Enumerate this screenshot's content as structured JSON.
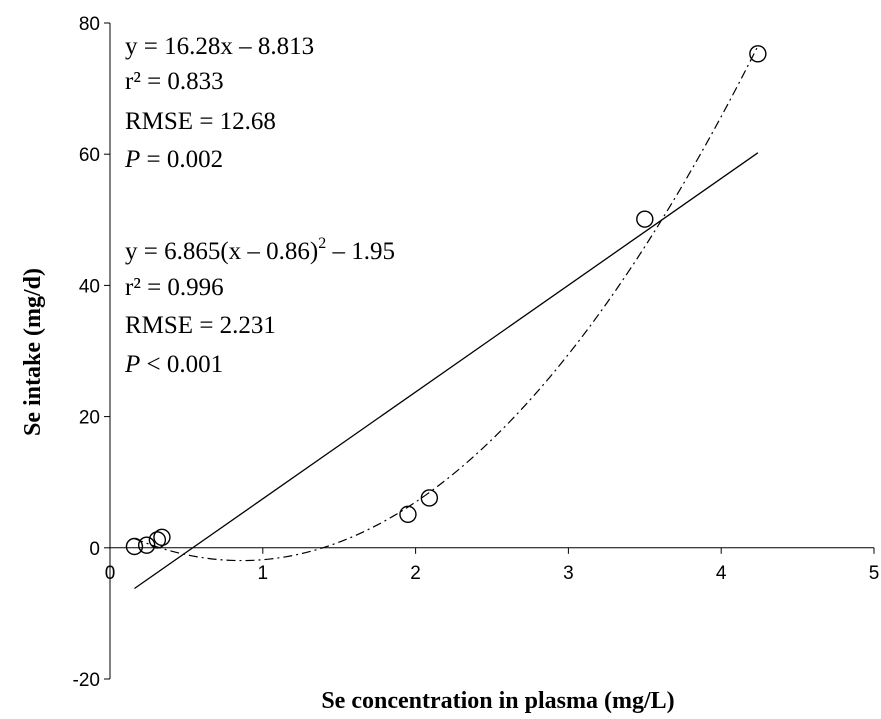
{
  "chart_data": {
    "type": "scatter",
    "title": "",
    "xlabel": "Se concentration in plasma (mg/L)",
    "ylabel": "Se intake (mg/d)",
    "xlim": [
      0,
      5
    ],
    "ylim": [
      -20,
      80
    ],
    "x_ticks": [
      "0",
      "1",
      "2",
      "3",
      "4",
      "5"
    ],
    "y_ticks": [
      "-20",
      "0",
      "20",
      "40",
      "60",
      "80"
    ],
    "x_tick_values": [
      0,
      1,
      2,
      3,
      4,
      5
    ],
    "y_tick_values": [
      -20,
      0,
      20,
      40,
      60,
      80
    ],
    "grid": false,
    "legend": "none",
    "series": [
      {
        "kind": "points",
        "marker": "open-circle",
        "x": [
          0.16,
          0.24,
          0.31,
          0.34,
          1.95,
          2.09,
          3.5,
          4.24
        ],
        "y": [
          0.2,
          0.4,
          1.2,
          1.6,
          5.1,
          7.6,
          50.1,
          75.3
        ]
      },
      {
        "kind": "linear-fit",
        "style": "solid",
        "slope": 16.28,
        "intercept": -8.813,
        "x_range": [
          0.16,
          4.24
        ]
      },
      {
        "kind": "quadratic-fit",
        "style": "dash-dot",
        "a": 6.865,
        "h": 0.86,
        "k": -1.95,
        "x_range": [
          0.16,
          4.24
        ]
      }
    ],
    "annotations": {
      "linear": {
        "equation": "y = 16.28x – 8.813",
        "r2_label": "r² = 0.833",
        "rmse": "RMSE = 12.68",
        "p_symbol": "P",
        "p_value": " = 0.002"
      },
      "quadratic": {
        "equation_main": "y = 6.865(x – 0.86)",
        "equation_exp": "2",
        "equation_tail": " – 1.95",
        "r2_label": "r² = 0.996",
        "rmse": "RMSE = 2.231",
        "p_symbol": "P",
        "p_value": " < 0.001"
      }
    },
    "colors": {
      "ink": "#000000",
      "background": "#ffffff"
    }
  }
}
